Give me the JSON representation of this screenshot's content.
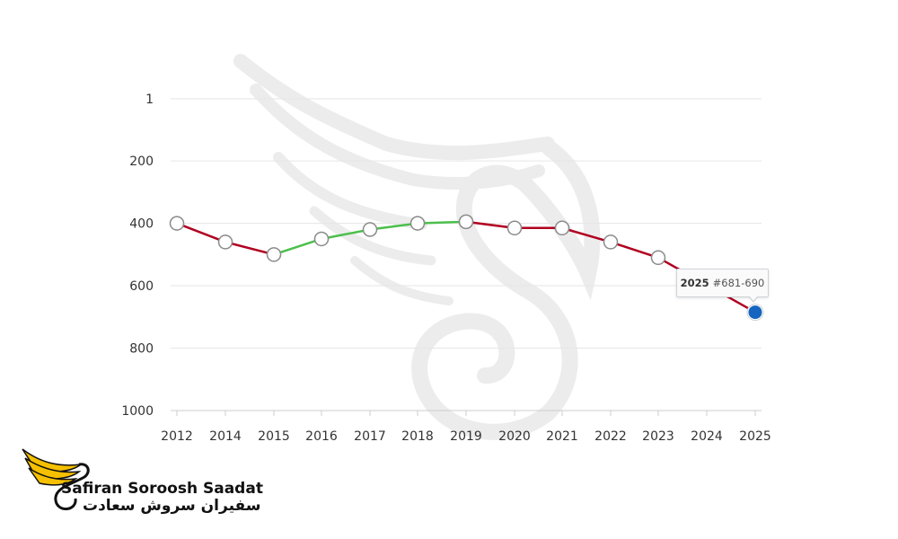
{
  "chart_data": {
    "type": "line",
    "title": "",
    "xlabel": "",
    "ylabel": "",
    "y_reversed": true,
    "ylim": [
      1,
      1000
    ],
    "y_ticks": [
      "1",
      "200",
      "400",
      "600",
      "800",
      "1000"
    ],
    "categories": [
      "2012",
      "2014",
      "2015",
      "2016",
      "2017",
      "2018",
      "2019",
      "2020",
      "2021",
      "2022",
      "2023",
      "2024",
      "2025"
    ],
    "values": [
      400,
      460,
      500,
      450,
      420,
      400,
      395,
      415,
      415,
      460,
      510,
      null,
      685
    ],
    "segment_colors": {
      "rising": "#4cbf4c",
      "falling": "#b00020"
    },
    "grid": true,
    "highlight": {
      "category": "2025",
      "year_label": "2025",
      "rank_label": "#681-690",
      "color": "#1565c0"
    }
  },
  "watermark": {
    "name": "swan-wing-watermark",
    "color": "#f2f2f2"
  },
  "brand": {
    "name_en": "Safiran Soroosh Saadat",
    "name_fa": "سفیران سروش سعادت",
    "colors": {
      "wing": "#f5c000",
      "text": "#111111"
    }
  }
}
